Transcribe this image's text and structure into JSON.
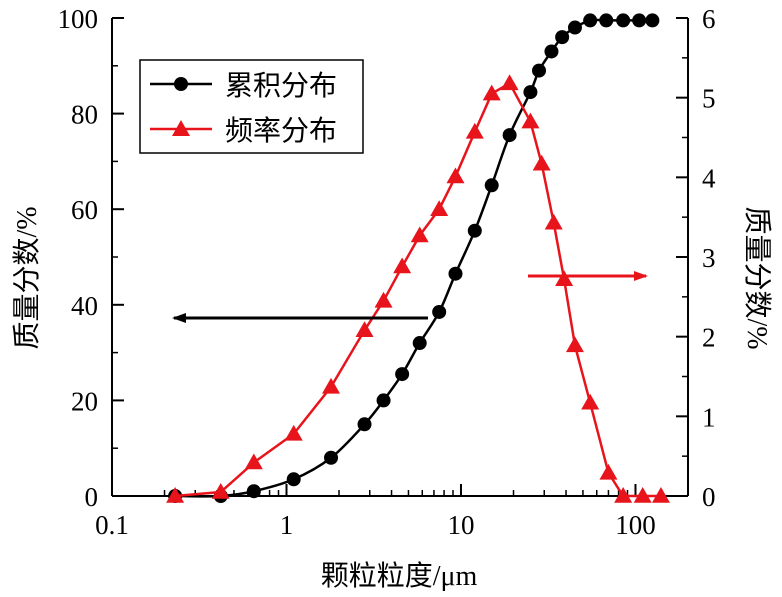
{
  "chart_data": {
    "type": "line",
    "xlabel": "颗粒粒度/μm",
    "ylabel_left": "质量分数/%",
    "ylabel_right": "质量分数/%",
    "x_scale": "log",
    "xlim": [
      0.1,
      200
    ],
    "x_ticks": [
      {
        "value": 0.1,
        "label": "0.1"
      },
      {
        "value": 1,
        "label": "1"
      },
      {
        "value": 10,
        "label": "10"
      },
      {
        "value": 100,
        "label": "100"
      }
    ],
    "ylim_left": [
      0,
      100
    ],
    "y_ticks_left": [
      0,
      20,
      40,
      60,
      80,
      100
    ],
    "ylim_right": [
      0,
      6
    ],
    "y_ticks_right": [
      0,
      1,
      2,
      3,
      4,
      5,
      6
    ],
    "grid": false,
    "legend_position": "top-left",
    "series": [
      {
        "name": "累积分布",
        "axis": "left",
        "color": "#000000",
        "marker": "circle",
        "x": [
          0.23,
          0.42,
          0.65,
          1.1,
          1.8,
          2.8,
          3.6,
          4.6,
          5.8,
          7.5,
          9.3,
          12,
          15,
          19,
          25,
          28,
          33,
          38,
          45,
          55,
          68,
          85,
          105,
          125
        ],
        "values": [
          0,
          0,
          1,
          3.5,
          8,
          15,
          20,
          25.5,
          32,
          38.5,
          46.5,
          55.5,
          65,
          75.5,
          84.5,
          89,
          93,
          96,
          98,
          99.5,
          99.5,
          99.5,
          99.5,
          99.5
        ]
      },
      {
        "name": "频率分布",
        "axis": "right",
        "color": "#e8141c",
        "marker": "triangle",
        "x": [
          0.23,
          0.42,
          0.65,
          1.1,
          1.8,
          2.8,
          3.6,
          4.6,
          5.8,
          7.5,
          9.3,
          12,
          15,
          19,
          25,
          29,
          34,
          39,
          45,
          55,
          70,
          85,
          110,
          140
        ],
        "values": [
          0,
          0.05,
          0.42,
          0.78,
          1.37,
          2.08,
          2.45,
          2.88,
          3.27,
          3.6,
          4.01,
          4.57,
          5.05,
          5.18,
          4.7,
          4.17,
          3.43,
          2.72,
          1.89,
          1.17,
          0.29,
          0.0,
          0.0,
          0.0
        ]
      }
    ],
    "annotations": [
      {
        "type": "arrow",
        "direction": "left",
        "points_to_axis": "left",
        "color": "#000000"
      },
      {
        "type": "arrow",
        "direction": "right",
        "points_to_axis": "right",
        "color": "#e8141c"
      }
    ]
  }
}
